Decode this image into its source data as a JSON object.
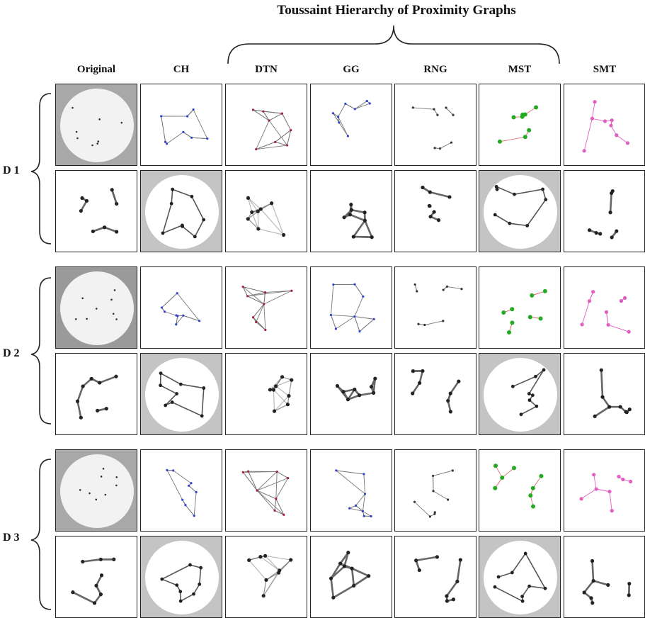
{
  "title": "Toussaint Hierarchy of Proximity Graphs",
  "columns": [
    "Original",
    "CH",
    "DTN",
    "GG",
    "RNG",
    "MST",
    "SMT"
  ],
  "rows": [
    "D 1",
    "D 2",
    "D 3"
  ],
  "icons": {
    "brace": "curly-brace",
    "point_colors": {
      "blue": "#3344cc",
      "red": "#a8203b",
      "green": "#22aa22",
      "pink": "#e060c0"
    }
  }
}
